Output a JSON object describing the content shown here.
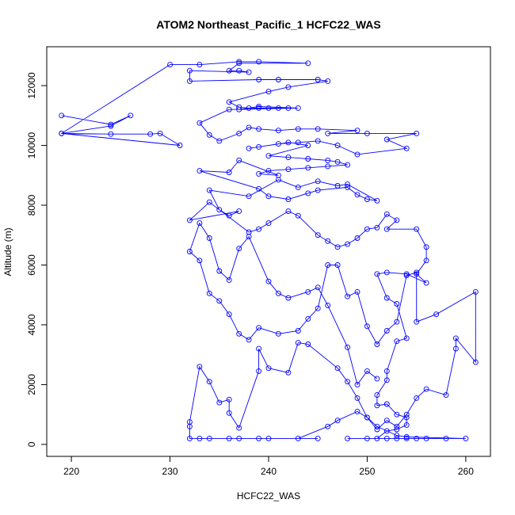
{
  "chart_data": {
    "type": "line",
    "title": "ATOM2 Northeast_Pacific_1 HCFC22_WAS",
    "xlabel": "HCFC22_WAS",
    "ylabel": "Altitude (m)",
    "xlim": [
      217.5,
      262.5
    ],
    "ylim": [
      -400,
      13300
    ],
    "x_ticks": [
      220,
      230,
      240,
      250,
      260
    ],
    "y_ticks": [
      0,
      2000,
      4000,
      6000,
      8000,
      10000,
      12000
    ],
    "x_tick_labels": [
      "220",
      "230",
      "240",
      "250",
      "260"
    ],
    "y_tick_labels": [
      "0",
      "2000",
      "4000",
      "6000",
      "8000",
      "10000",
      "12000"
    ],
    "grid": false,
    "line_color": "#0000ff",
    "marker": "open-circle",
    "series": [
      {
        "values": [
          [
            219,
            11000
          ],
          [
            224,
            10700
          ],
          [
            226,
            11000
          ],
          [
            224,
            10650
          ],
          [
            219,
            10400
          ],
          [
            224,
            10380
          ],
          [
            228,
            10380
          ],
          [
            229,
            10400
          ],
          [
            231,
            10000
          ],
          [
            219,
            10400
          ],
          [
            230,
            12700
          ],
          [
            233,
            12700
          ],
          [
            237,
            12800
          ],
          [
            239,
            12800
          ],
          [
            244,
            12750
          ],
          [
            237,
            12750
          ],
          [
            236,
            12500
          ],
          [
            237,
            12500
          ],
          [
            238,
            12450
          ],
          [
            232,
            12500
          ],
          [
            232,
            12150
          ],
          [
            239,
            12200
          ],
          [
            241,
            12200
          ],
          [
            245,
            12200
          ],
          [
            246,
            12150
          ],
          [
            242,
            11950
          ],
          [
            240,
            11800
          ],
          [
            236,
            11450
          ],
          [
            237,
            11280
          ],
          [
            238,
            11250
          ],
          [
            239,
            11250
          ],
          [
            240,
            11250
          ],
          [
            241,
            11250
          ],
          [
            242,
            11250
          ],
          [
            237,
            11200
          ],
          [
            239,
            11300
          ],
          [
            243,
            11250
          ],
          [
            236,
            11200
          ],
          [
            233,
            10750
          ],
          [
            234,
            10350
          ],
          [
            235,
            10150
          ],
          [
            237,
            10400
          ],
          [
            238,
            10600
          ],
          [
            239,
            10550
          ],
          [
            241,
            10500
          ],
          [
            243,
            10550
          ],
          [
            245,
            10550
          ],
          [
            249,
            10500
          ],
          [
            246,
            10400
          ],
          [
            250,
            10400
          ],
          [
            255,
            10400
          ],
          [
            252,
            10200
          ],
          [
            254,
            9900
          ],
          [
            249,
            9700
          ],
          [
            247,
            10000
          ],
          [
            245,
            10150
          ],
          [
            243,
            10100
          ],
          [
            241,
            10050
          ],
          [
            239,
            9950
          ],
          [
            238,
            9900
          ],
          [
            242,
            10100
          ],
          [
            244,
            10000
          ],
          [
            240,
            9650
          ],
          [
            242,
            9600
          ],
          [
            244,
            9550
          ],
          [
            246,
            9500
          ],
          [
            247,
            9450
          ],
          [
            248,
            9350
          ],
          [
            246,
            9300
          ],
          [
            244,
            9250
          ],
          [
            242,
            9200
          ],
          [
            240,
            9150
          ],
          [
            239,
            9050
          ],
          [
            241,
            9000
          ],
          [
            237,
            9500
          ],
          [
            236,
            9100
          ],
          [
            233,
            9150
          ],
          [
            239,
            8550
          ],
          [
            240,
            8300
          ],
          [
            242,
            8200
          ],
          [
            244,
            8400
          ],
          [
            245,
            8500
          ],
          [
            248,
            8600
          ],
          [
            249,
            8350
          ],
          [
            250,
            8200
          ],
          [
            251,
            8150
          ],
          [
            248,
            8700
          ],
          [
            247,
            8650
          ],
          [
            245,
            8800
          ],
          [
            243,
            8600
          ],
          [
            241,
            8850
          ],
          [
            238,
            8300
          ],
          [
            234,
            8500
          ],
          [
            235,
            7850
          ],
          [
            236,
            7650
          ],
          [
            237,
            7800
          ],
          [
            232,
            7500
          ],
          [
            234,
            8100
          ],
          [
            238,
            7100
          ],
          [
            239,
            7200
          ],
          [
            240,
            7400
          ],
          [
            242,
            7800
          ],
          [
            243,
            7650
          ],
          [
            245,
            7000
          ],
          [
            246,
            6800
          ],
          [
            247,
            6600
          ],
          [
            248,
            6700
          ],
          [
            249,
            6900
          ],
          [
            250,
            7200
          ],
          [
            251,
            7250
          ],
          [
            252,
            7700
          ],
          [
            253,
            7500
          ],
          [
            252,
            7200
          ],
          [
            255,
            7200
          ],
          [
            256,
            6600
          ],
          [
            256,
            6150
          ],
          [
            255,
            5700
          ],
          [
            256,
            5400
          ],
          [
            254,
            5700
          ],
          [
            252,
            5750
          ],
          [
            251,
            5700
          ],
          [
            252,
            4900
          ],
          [
            253,
            4700
          ],
          [
            254,
            3550
          ],
          [
            253,
            3450
          ],
          [
            252,
            2450
          ],
          [
            252,
            2150
          ],
          [
            251,
            1650
          ],
          [
            251,
            1300
          ],
          [
            252,
            1350
          ],
          [
            253,
            1000
          ],
          [
            254,
            900
          ],
          [
            254,
            650
          ],
          [
            253,
            500
          ],
          [
            252,
            450
          ],
          [
            251,
            200
          ],
          [
            250,
            200
          ],
          [
            248,
            200
          ],
          [
            252,
            200
          ],
          [
            253,
            200
          ],
          [
            254,
            200
          ],
          [
            255,
            200
          ],
          [
            256,
            200
          ],
          [
            258,
            200
          ],
          [
            260,
            200
          ],
          [
            254,
            250
          ],
          [
            253,
            300
          ],
          [
            251,
            600
          ],
          [
            250,
            900
          ],
          [
            249,
            1100
          ],
          [
            247,
            800
          ],
          [
            246,
            600
          ],
          [
            243,
            200
          ],
          [
            245,
            200
          ],
          [
            240,
            200
          ],
          [
            239,
            200
          ],
          [
            237,
            200
          ],
          [
            236,
            200
          ],
          [
            234,
            200
          ],
          [
            233,
            200
          ],
          [
            232,
            200
          ],
          [
            232,
            600
          ],
          [
            232,
            750
          ],
          [
            233,
            2600
          ],
          [
            234,
            2100
          ],
          [
            235,
            1400
          ],
          [
            236,
            1500
          ],
          [
            236,
            1050
          ],
          [
            237,
            550
          ],
          [
            239,
            2450
          ],
          [
            239,
            3200
          ],
          [
            240,
            2550
          ],
          [
            242,
            2400
          ],
          [
            243,
            3400
          ],
          [
            244,
            3350
          ],
          [
            247,
            2550
          ],
          [
            248,
            2100
          ],
          [
            249,
            1550
          ],
          [
            250,
            900
          ],
          [
            251,
            500
          ],
          [
            252,
            800
          ],
          [
            253,
            600
          ],
          [
            254,
            1000
          ],
          [
            255,
            1550
          ],
          [
            256,
            1850
          ],
          [
            258,
            1650
          ],
          [
            259,
            3200
          ],
          [
            259,
            3550
          ],
          [
            261,
            2750
          ],
          [
            261,
            5100
          ],
          [
            257,
            4350
          ],
          [
            255,
            4100
          ],
          [
            255,
            5750
          ],
          [
            254,
            5650
          ],
          [
            253,
            4100
          ],
          [
            252,
            3800
          ],
          [
            251,
            3350
          ],
          [
            250,
            3950
          ],
          [
            249,
            5100
          ],
          [
            248,
            4950
          ],
          [
            247,
            6000
          ],
          [
            246,
            6000
          ],
          [
            245,
            4550
          ],
          [
            244,
            4200
          ],
          [
            243,
            3800
          ],
          [
            241,
            3700
          ],
          [
            239,
            3900
          ],
          [
            238,
            3500
          ],
          [
            237,
            3700
          ],
          [
            236,
            4350
          ],
          [
            235,
            4800
          ],
          [
            234,
            5050
          ],
          [
            233,
            6150
          ],
          [
            232,
            6450
          ],
          [
            233,
            7400
          ],
          [
            234,
            6900
          ],
          [
            235,
            5800
          ],
          [
            236,
            5500
          ],
          [
            237,
            6550
          ],
          [
            238,
            6950
          ],
          [
            240,
            5450
          ],
          [
            241,
            5050
          ],
          [
            242,
            4900
          ],
          [
            244,
            5100
          ],
          [
            245,
            5250
          ],
          [
            246,
            4650
          ],
          [
            248,
            3250
          ],
          [
            249,
            2000
          ],
          [
            250,
            2450
          ],
          [
            251,
            2200
          ]
        ]
      }
    ]
  }
}
